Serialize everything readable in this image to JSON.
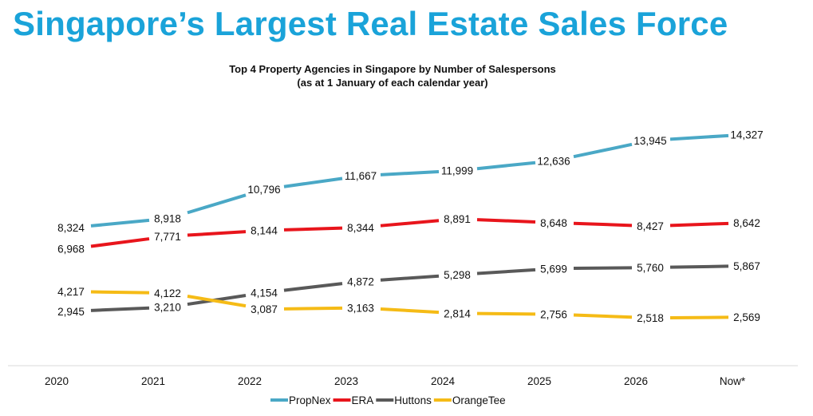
{
  "page_title": "Singapore’s Largest Real Estate Sales Force",
  "chart_data": {
    "type": "line",
    "title": "Top 4 Property Agencies in Singapore by Number of Salespersons",
    "subtitle": "(as at 1 January of each calendar year)",
    "xlabel": "",
    "ylabel": "",
    "categories": [
      "2020",
      "2021",
      "2022",
      "2023",
      "2024",
      "2025",
      "2026",
      "Now*"
    ],
    "ylim": [
      1500,
      14500
    ],
    "grid": false,
    "legend_position": "bottom",
    "series": [
      {
        "name": "PropNex",
        "color": "#4aa8c6",
        "values": [
          8324,
          8918,
          10796,
          11667,
          11999,
          12636,
          13945,
          14327
        ],
        "labels": [
          "8,324",
          "8,918",
          "10,796",
          "11,667",
          "11,999",
          "12,636",
          "13,945",
          "14,327"
        ]
      },
      {
        "name": "ERA",
        "color": "#e8151c",
        "values": [
          6968,
          7771,
          8144,
          8344,
          8891,
          8648,
          8427,
          8642
        ],
        "labels": [
          "6,968",
          "7,771",
          "8,144",
          "8,344",
          "8,891",
          "8,648",
          "8,427",
          "8,642"
        ]
      },
      {
        "name": "Huttons",
        "color": "#595959",
        "values": [
          2945,
          3210,
          4154,
          4872,
          5298,
          5699,
          5760,
          5867
        ],
        "labels": [
          "2,945",
          "3,210",
          "4,154",
          "4,872",
          "5,298",
          "5,699",
          "5,760",
          "5,867"
        ]
      },
      {
        "name": "OrangeTee",
        "color": "#f5bb16",
        "values": [
          4217,
          4122,
          3087,
          3163,
          2814,
          2756,
          2518,
          2569
        ],
        "labels": [
          "4,217",
          "4,122",
          "3,087",
          "3,163",
          "2,814",
          "2,756",
          "2,518",
          "2,569"
        ]
      }
    ]
  }
}
